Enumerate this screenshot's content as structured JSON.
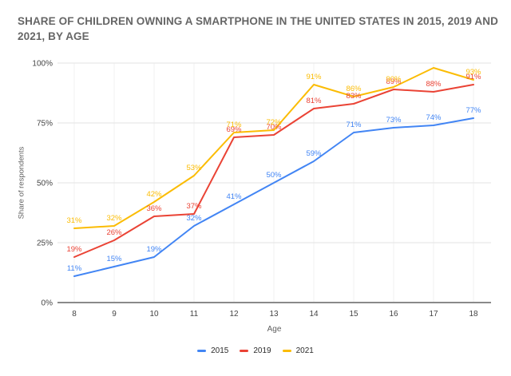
{
  "chart_data": {
    "type": "line",
    "title": "SHARE OF CHILDREN OWNING A SMARTPHONE IN THE UNITED STATES IN 2015, 2019 AND 2021, BY AGE",
    "xlabel": "Age",
    "ylabel": "Share of respondents",
    "categories": [
      "8",
      "9",
      "10",
      "11",
      "12",
      "13",
      "14",
      "15",
      "16",
      "17",
      "18"
    ],
    "series": [
      {
        "name": "2015",
        "color": "#4285F4",
        "values": [
          11,
          15,
          19,
          32,
          41,
          50,
          59,
          71,
          73,
          74,
          77
        ],
        "labels": [
          "11%",
          "15%",
          "19%",
          "32%",
          "41%",
          "50%",
          "59%",
          "71%",
          "73%",
          "74%",
          "77%"
        ]
      },
      {
        "name": "2019",
        "color": "#EA4335",
        "values": [
          19,
          26,
          36,
          37,
          69,
          70,
          81,
          83,
          89,
          88,
          91
        ],
        "labels": [
          "19%",
          "26%",
          "36%",
          "37%",
          "69%",
          "70%",
          "81%",
          "83%",
          "89%",
          "88%",
          "91%"
        ]
      },
      {
        "name": "2021",
        "color": "#FBBC04",
        "values": [
          31,
          32,
          42,
          53,
          71,
          72,
          91,
          86,
          90,
          98,
          93
        ],
        "labels": [
          "31%",
          "32%",
          "42%",
          "53%",
          "71%",
          "72%",
          "91%",
          "86%",
          "90%",
          "",
          "93%"
        ]
      }
    ],
    "yticks": [
      0,
      25,
      50,
      75,
      100
    ],
    "ytick_labels": [
      "0%",
      "25%",
      "50%",
      "75%",
      "100%"
    ],
    "ylim": [
      0,
      100
    ],
    "unit": "%",
    "grid": true,
    "legend_position": "bottom",
    "colors": {
      "title_text": "#666666",
      "tick_text": "#444444",
      "axis_title_text": "#5f5f5f",
      "gridline": "#e3e3e3",
      "minor_vertical_gridline": "#f2f2f2",
      "baseline": "#8a8a8a",
      "background": "#ffffff"
    }
  }
}
